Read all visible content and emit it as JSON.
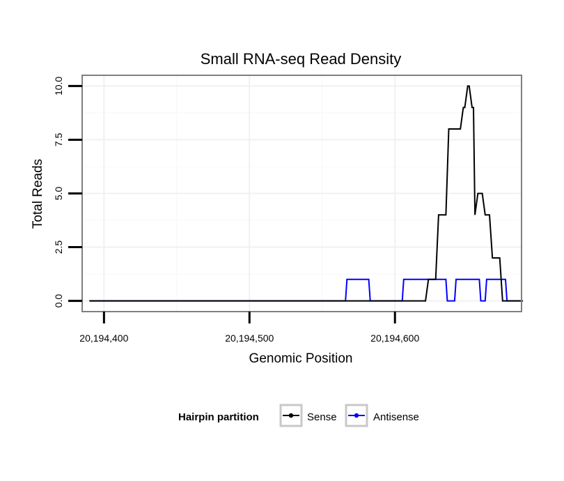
{
  "chart_data": {
    "type": "line",
    "title": "Small RNA-seq Read Density",
    "xlabel": "Genomic Position",
    "ylabel": "Total Reads",
    "xlim": [
      20194385,
      20194687
    ],
    "ylim": [
      -0.5,
      10.5
    ],
    "x_ticks": [
      20194400,
      20194500,
      20194600
    ],
    "x_tick_labels": [
      "20,194,400",
      "20,194,500",
      "20,194,600"
    ],
    "y_ticks": [
      0,
      2.5,
      5,
      7.5,
      10
    ],
    "y_tick_labels": [
      "0.0",
      "2.5",
      "5.0",
      "7.5",
      "10.0"
    ],
    "grid": true,
    "legend": {
      "title": "Hairpin partition",
      "placement": "bottom",
      "entries": [
        "Sense",
        "Antisense"
      ]
    },
    "series": [
      {
        "name": "Sense",
        "color": "#000000",
        "x": [
          20194390,
          20194621,
          20194623,
          20194628,
          20194630,
          20194635,
          20194637,
          20194645,
          20194647,
          20194648,
          20194650,
          20194651,
          20194653,
          20194654,
          20194655,
          20194657,
          20194660,
          20194662,
          20194665,
          20194667,
          20194672,
          20194674,
          20194677,
          20194678,
          20194688
        ],
        "values": [
          0,
          0,
          1,
          1,
          4,
          4,
          8,
          8,
          9,
          9,
          10,
          10,
          9,
          9,
          4,
          5,
          5,
          4,
          4,
          2,
          2,
          0,
          0,
          0,
          0
        ]
      },
      {
        "name": "Antisense",
        "color": "#0000ff",
        "x": [
          20194390,
          20194566,
          20194567,
          20194582,
          20194583,
          20194605,
          20194606,
          20194621,
          20194622,
          20194625,
          20194626,
          20194635,
          20194636,
          20194641,
          20194642,
          20194658,
          20194659,
          20194662,
          20194663,
          20194665,
          20194666,
          20194676,
          20194677,
          20194686
        ],
        "values": [
          0,
          0,
          1,
          1,
          0,
          0,
          1,
          1,
          1,
          1,
          1,
          1,
          0,
          0,
          1,
          1,
          0,
          0,
          1,
          1,
          1,
          1,
          0,
          0
        ]
      }
    ]
  }
}
